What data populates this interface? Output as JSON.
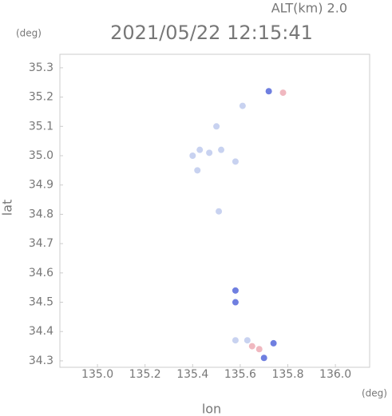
{
  "chart_data": {
    "type": "scatter",
    "title": "2021/05/22 12:15:41",
    "subtitle": "ALT(km) 2.0",
    "y_unit": "(deg)",
    "x_unit": "(deg)",
    "xlabel": "lon",
    "ylabel": "lat",
    "xlim": [
      134.842,
      136.144
    ],
    "ylim": [
      34.278,
      35.346
    ],
    "xticks": [
      {
        "value": 135,
        "label": "135.0"
      },
      135.2,
      135.4,
      135.6,
      135.8,
      {
        "value": 136,
        "label": "136.0"
      }
    ],
    "yticks": [
      34.3,
      34.4,
      34.5,
      34.6,
      34.7,
      34.8,
      34.9,
      {
        "value": 35,
        "label": "35.0"
      },
      35.1,
      35.2,
      35.3
    ],
    "series": [
      {
        "color": "#c8d2f0",
        "x": [
          135.61,
          135.5,
          135.43,
          135.47,
          135.52,
          135.4,
          135.58,
          135.42,
          135.51,
          135.58,
          135.63
        ],
        "values": [
          35.17,
          35.1,
          35.02,
          35.01,
          35.02,
          35.0,
          34.98,
          34.95,
          34.81,
          34.37,
          34.37
        ]
      },
      {
        "color": "#6f7fe0",
        "x": [
          135.72,
          135.58,
          135.58,
          135.7,
          135.74
        ],
        "values": [
          35.22,
          34.54,
          34.5,
          34.31,
          34.36
        ]
      },
      {
        "color": "#f0b8c0",
        "x": [
          135.78,
          135.65,
          135.68
        ],
        "values": [
          35.215,
          34.35,
          34.34
        ]
      }
    ]
  }
}
